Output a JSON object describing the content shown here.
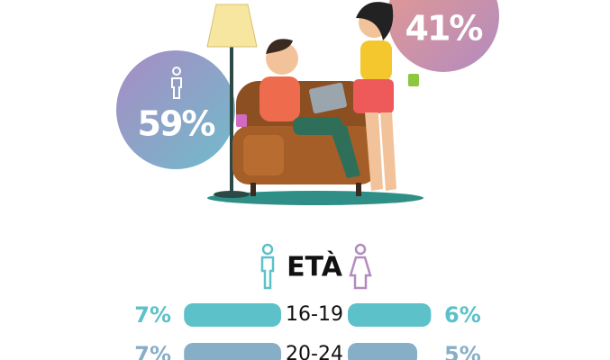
{
  "gender": {
    "values": [
      59,
      41
    ],
    "value_labels": [
      "59%",
      "41%"
    ]
  },
  "chart_data": {
    "type": "butterfly",
    "title": "ETÀ",
    "categories": [
      "16-19",
      "20-24"
    ],
    "series": [
      {
        "values": [
          7,
          7
        ],
        "value_labels": [
          "7%",
          "7%"
        ]
      },
      {
        "values": [
          6,
          5
        ],
        "value_labels": [
          "6%",
          "5%"
        ]
      }
    ],
    "row_colors": [
      "#5cc1c9",
      "#86aec6"
    ]
  }
}
